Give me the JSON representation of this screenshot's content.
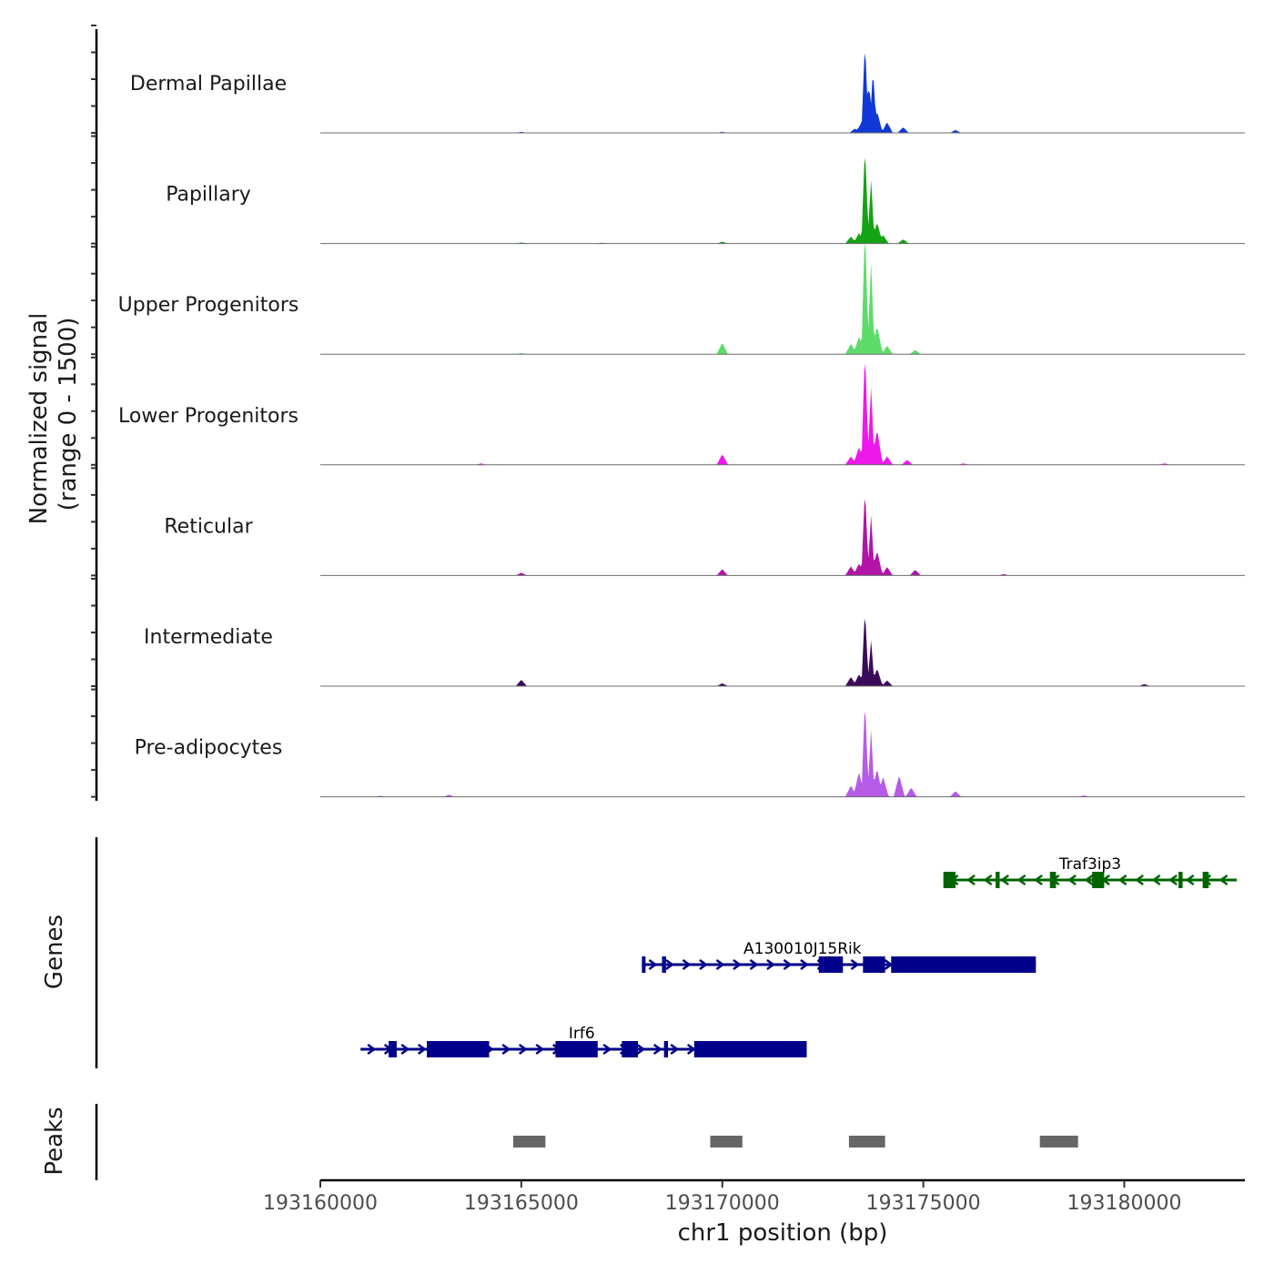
{
  "chart_data": {
    "type": "area",
    "title": "",
    "ylabel": "Normalized signal",
    "ylabel_range": "(range 0 - 1500)",
    "xlabel": "chr1 position (bp)",
    "xlim": [
      193160000,
      193183000
    ],
    "ylim": [
      0,
      1500
    ],
    "x_ticks": [
      193160000,
      193165000,
      193170000,
      193175000,
      193180000
    ],
    "x_tick_labels": [
      "193160000",
      "193165000",
      "193170000",
      "193175000",
      "193180000"
    ],
    "tracks": [
      {
        "name": "Dermal Papillae",
        "color": "#1038d8",
        "peaks": [
          [
            193173300,
            60
          ],
          [
            193173450,
            130
          ],
          [
            193173550,
            1300
          ],
          [
            193173650,
            700
          ],
          [
            193173750,
            900
          ],
          [
            193173850,
            300
          ],
          [
            193174100,
            150
          ],
          [
            193174500,
            80
          ],
          [
            193175800,
            40
          ],
          [
            193165000,
            15
          ],
          [
            193170000,
            15
          ]
        ]
      },
      {
        "name": "Papillary",
        "color": "#14a314",
        "peaks": [
          [
            193173200,
            100
          ],
          [
            193173400,
            150
          ],
          [
            193173550,
            1400
          ],
          [
            193173700,
            900
          ],
          [
            193173850,
            300
          ],
          [
            193174000,
            120
          ],
          [
            193174500,
            60
          ],
          [
            193170000,
            25
          ],
          [
            193165000,
            15
          ],
          [
            193167000,
            12
          ]
        ]
      },
      {
        "name": "Upper Progenitors",
        "color": "#5ddc6a",
        "peaks": [
          [
            193170000,
            160
          ],
          [
            193173200,
            150
          ],
          [
            193173400,
            250
          ],
          [
            193173550,
            1830
          ],
          [
            193173700,
            1300
          ],
          [
            193173850,
            400
          ],
          [
            193174100,
            120
          ],
          [
            193174800,
            60
          ],
          [
            193165000,
            15
          ]
        ]
      },
      {
        "name": "Lower Progenitors",
        "color": "#ee18ea",
        "peaks": [
          [
            193170000,
            150
          ],
          [
            193173200,
            120
          ],
          [
            193173400,
            250
          ],
          [
            193173550,
            1650
          ],
          [
            193173700,
            1100
          ],
          [
            193173850,
            500
          ],
          [
            193174100,
            120
          ],
          [
            193174600,
            70
          ],
          [
            193164000,
            20
          ],
          [
            193176000,
            20
          ],
          [
            193181000,
            20
          ]
        ]
      },
      {
        "name": "Reticular",
        "color": "#b214a8",
        "peaks": [
          [
            193165000,
            40
          ],
          [
            193170000,
            90
          ],
          [
            193173200,
            130
          ],
          [
            193173400,
            170
          ],
          [
            193173550,
            1250
          ],
          [
            193173700,
            850
          ],
          [
            193173850,
            350
          ],
          [
            193174100,
            120
          ],
          [
            193174800,
            80
          ],
          [
            193177000,
            20
          ]
        ]
      },
      {
        "name": "Intermediate",
        "color": "#3c0a5a",
        "peaks": [
          [
            193165000,
            90
          ],
          [
            193170000,
            40
          ],
          [
            193173200,
            130
          ],
          [
            193173400,
            170
          ],
          [
            193173550,
            1100
          ],
          [
            193173700,
            650
          ],
          [
            193173850,
            250
          ],
          [
            193174100,
            80
          ],
          [
            193180500,
            30
          ]
        ]
      },
      {
        "name": "Pre-adipocytes",
        "color": "#b65ce8",
        "peaks": [
          [
            193163200,
            30
          ],
          [
            193173200,
            160
          ],
          [
            193173400,
            350
          ],
          [
            193173550,
            1400
          ],
          [
            193173700,
            950
          ],
          [
            193173850,
            400
          ],
          [
            193174000,
            280
          ],
          [
            193174400,
            300
          ],
          [
            193174700,
            130
          ],
          [
            193175800,
            80
          ],
          [
            193161500,
            15
          ],
          [
            193179000,
            20
          ]
        ]
      }
    ],
    "genes": [
      {
        "name": "Traf3ip3",
        "strand": "-",
        "color": "#006400",
        "start": 193175500,
        "end": 193182800,
        "row": 0,
        "exons": [
          [
            193175500,
            193175800
          ],
          [
            193176800,
            193176900
          ],
          [
            193178150,
            193178300
          ],
          [
            193179200,
            193179500
          ],
          [
            193181350,
            193181450
          ],
          [
            193181950,
            193182100
          ]
        ]
      },
      {
        "name": "A130010J15Rik",
        "strand": "+",
        "color": "#00008b",
        "start": 193168000,
        "end": 193177800,
        "row": 1,
        "exons": [
          [
            193168000,
            193168050
          ],
          [
            193168500,
            193168600
          ],
          [
            193172400,
            193172500
          ],
          [
            193172500,
            193173000
          ],
          [
            193173500,
            193174050
          ],
          [
            193174200,
            193177800
          ]
        ]
      },
      {
        "name": "Irf6",
        "strand": "+",
        "color": "#00008b",
        "start": 193161000,
        "end": 193172100,
        "row": 2,
        "exons": [
          [
            193161700,
            193161900
          ],
          [
            193162650,
            193164200
          ],
          [
            193165850,
            193166900
          ],
          [
            193167500,
            193167900
          ],
          [
            193168550,
            193168650
          ],
          [
            193169300,
            193172100
          ]
        ]
      }
    ],
    "peaks_track_label": "Peaks",
    "genes_track_label": "Genes",
    "called_peaks": [
      [
        193164800,
        193165600
      ],
      [
        193169700,
        193170500
      ],
      [
        193173150,
        193174050
      ],
      [
        193177900,
        193178850
      ]
    ]
  }
}
